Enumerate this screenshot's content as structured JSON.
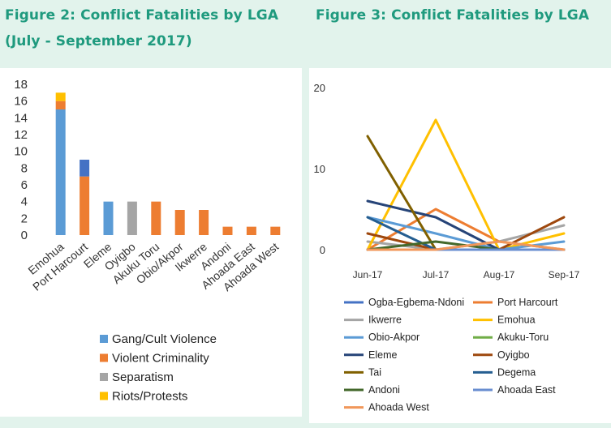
{
  "figure2": {
    "title_line1": "Figure 2: Conflict Fatalities by LGA",
    "title_line2": "(July - September 2017)"
  },
  "figure3": {
    "title": "Figure 3: Conflict Fatalities by LGA"
  },
  "chart_data": [
    {
      "type": "bar",
      "stacked": true,
      "categories": [
        "Emohua",
        "Port Harcourt",
        "Eleme",
        "Oyigbo",
        "Akuku Toru",
        "Obio/Akpor",
        "Ikwerre",
        "Andoni",
        "Ahoada East",
        "Ahoada West"
      ],
      "series": [
        {
          "name": "Gang/Cult Violence",
          "color": "#5b9bd5",
          "values": [
            15,
            0,
            4,
            0,
            0,
            0,
            0,
            0,
            0,
            0
          ]
        },
        {
          "name": "Violent Criminality",
          "color": "#ed7d31",
          "values": [
            1,
            7,
            0,
            0,
            4,
            3,
            3,
            1,
            1,
            1
          ]
        },
        {
          "name": "Separatism",
          "color": "#a5a5a5",
          "values": [
            0,
            0,
            0,
            4,
            0,
            0,
            0,
            0,
            0,
            0
          ]
        },
        {
          "name": "Riots/Protests",
          "color": "#ffc000",
          "values": [
            1,
            0,
            0,
            0,
            0,
            0,
            0,
            0,
            0,
            0
          ]
        },
        {
          "name": "",
          "color": "#4472c4",
          "values": [
            0,
            2,
            0,
            0,
            0,
            0,
            0,
            0,
            0,
            0
          ]
        }
      ],
      "ylim": [
        0,
        18
      ],
      "yticks": [
        "0",
        "2",
        "4",
        "6",
        "8",
        "10",
        "12",
        "14",
        "16",
        "18"
      ],
      "grid": false,
      "legend": "bottom"
    },
    {
      "type": "line",
      "categories": [
        "Jun-17",
        "Jul-17",
        "Aug-17",
        "Sep-17"
      ],
      "ylim": [
        0,
        20
      ],
      "yticks": [
        "0",
        "10",
        "20"
      ],
      "grid": false,
      "legend": "bottom",
      "series": [
        {
          "name": "Ogba-Egbema-Ndoni",
          "color": "#4472c4",
          "values": [
            0,
            0,
            0,
            0
          ]
        },
        {
          "name": "Port Harcourt",
          "color": "#ed7d31",
          "values": [
            0,
            5,
            1,
            0
          ]
        },
        {
          "name": "Ikwerre",
          "color": "#a5a5a5",
          "values": [
            1,
            0,
            1,
            3
          ]
        },
        {
          "name": "Emohua",
          "color": "#ffc000",
          "values": [
            0,
            16,
            0,
            2
          ]
        },
        {
          "name": "Obio-Akpor",
          "color": "#5b9bd5",
          "values": [
            4,
            2,
            0,
            1
          ]
        },
        {
          "name": "Akuku-Toru",
          "color": "#70ad47",
          "values": [
            0,
            0,
            0,
            0
          ]
        },
        {
          "name": "Eleme",
          "color": "#264478",
          "values": [
            6,
            4,
            0,
            0
          ]
        },
        {
          "name": "Oyigbo",
          "color": "#9e480e",
          "values": [
            2,
            0,
            0,
            4
          ]
        },
        {
          "name": "Tai",
          "color": "#806000",
          "values": [
            14,
            0,
            0,
            0
          ]
        },
        {
          "name": "Degema",
          "color": "#255e91",
          "values": [
            4,
            0,
            0,
            0
          ]
        },
        {
          "name": "Andoni",
          "color": "#43682b",
          "values": [
            0,
            1,
            0,
            0
          ]
        },
        {
          "name": "Ahoada East",
          "color": "#698ed0",
          "values": [
            0,
            0,
            0,
            0
          ]
        },
        {
          "name": "Ahoada West",
          "color": "#f1975a",
          "values": [
            0,
            0,
            1,
            0
          ]
        }
      ]
    }
  ]
}
